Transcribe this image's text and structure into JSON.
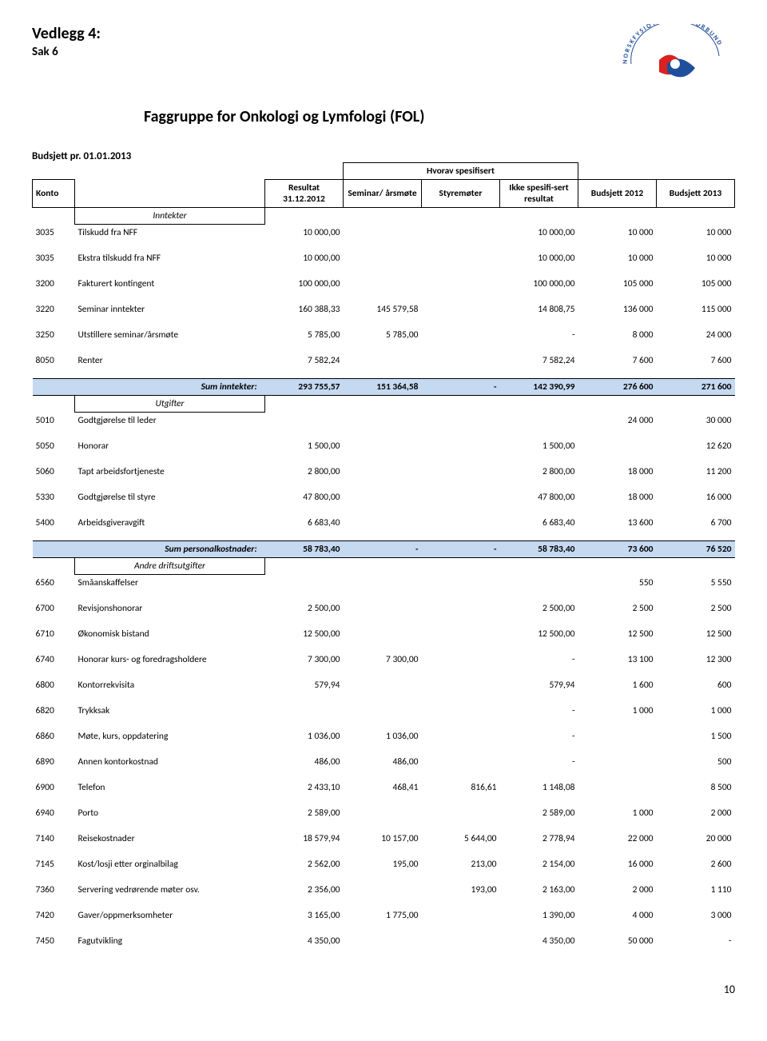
{
  "header": {
    "vedlegg": "Vedlegg 4:",
    "sak": "Sak 6",
    "title": "Faggruppe for Onkologi og Lymfologi (FOL)",
    "logo_text_top": "NORSK",
    "logo_text_mid": "FYSIOTERAPEUTFORBUND",
    "logo_colors": {
      "red": "#d9221f",
      "blue": "#1f4f9b"
    }
  },
  "budsjett_line": "Budsjett pr. 01.01.2013",
  "hvorav": "Hvorav spesifisert",
  "columns": {
    "konto": "Konto",
    "resultat": "Resultat 31.12.2012",
    "seminar": "Seminar/ årsmøte",
    "styremoter": "Styremøter",
    "ikke": "Ikke spesifi-sert resultat",
    "b2012": "Budsjett 2012",
    "b2013": "Budsjett 2013"
  },
  "sections": {
    "inntekter": "Inntekter",
    "utgifter": "Utgifter",
    "andre": "Andre driftsutgifter"
  },
  "sums": {
    "inntekter_label": "Sum inntekter:",
    "inntekter": [
      "293 755,57",
      "151 364,58",
      "-",
      "142 390,99",
      "276 600",
      "271 600"
    ],
    "personal_label": "Sum personalkostnader:",
    "personal": [
      "58 783,40",
      "-",
      "-",
      "58 783,40",
      "73 600",
      "76 520"
    ]
  },
  "rows_inntekter": [
    {
      "k": "3035",
      "l": "Tilskudd fra NFF",
      "v": [
        "10 000,00",
        "",
        "",
        "10 000,00",
        "10 000",
        "10 000"
      ]
    },
    {
      "k": "3035",
      "l": "Ekstra tilskudd fra NFF",
      "v": [
        "10 000,00",
        "",
        "",
        "10 000,00",
        "10 000",
        "10 000"
      ]
    },
    {
      "k": "3200",
      "l": "Fakturert kontingent",
      "v": [
        "100 000,00",
        "",
        "",
        "100 000,00",
        "105 000",
        "105 000"
      ]
    },
    {
      "k": "3220",
      "l": "Seminar inntekter",
      "v": [
        "160 388,33",
        "145 579,58",
        "",
        "14 808,75",
        "136 000",
        "115 000"
      ]
    },
    {
      "k": "3250",
      "l": "Utstillere seminar/årsmøte",
      "v": [
        "5 785,00",
        "5 785,00",
        "",
        "-",
        "8 000",
        "24 000"
      ]
    },
    {
      "k": "8050",
      "l": "Renter",
      "v": [
        "7 582,24",
        "",
        "",
        "7 582,24",
        "7 600",
        "7 600"
      ]
    }
  ],
  "rows_utgifter": [
    {
      "k": "5010",
      "l": "Godtgjørelse til leder",
      "v": [
        "",
        "",
        "",
        "",
        "24 000",
        "30 000"
      ]
    },
    {
      "k": "5050",
      "l": "Honorar",
      "v": [
        "1 500,00",
        "",
        "",
        "1 500,00",
        "",
        "12 620"
      ]
    },
    {
      "k": "5060",
      "l": "Tapt arbeidsfortjeneste",
      "v": [
        "2 800,00",
        "",
        "",
        "2 800,00",
        "18 000",
        "11 200"
      ]
    },
    {
      "k": "5330",
      "l": "Godtgjørelse til styre",
      "v": [
        "47 800,00",
        "",
        "",
        "47 800,00",
        "18 000",
        "16 000"
      ]
    },
    {
      "k": "5400",
      "l": "Arbeidsgiveravgift",
      "v": [
        "6 683,40",
        "",
        "",
        "6 683,40",
        "13 600",
        "6 700"
      ]
    }
  ],
  "rows_andre": [
    {
      "k": "6560",
      "l": "Småanskaffelser",
      "v": [
        "",
        "",
        "",
        "",
        "550",
        "5 550"
      ]
    },
    {
      "k": "6700",
      "l": "Revisjonshonorar",
      "v": [
        "2 500,00",
        "",
        "",
        "2 500,00",
        "2 500",
        "2 500"
      ]
    },
    {
      "k": "6710",
      "l": "Økonomisk bistand",
      "v": [
        "12 500,00",
        "",
        "",
        "12 500,00",
        "12 500",
        "12 500"
      ]
    },
    {
      "k": "6740",
      "l": "Honorar kurs- og foredragsholdere",
      "v": [
        "7 300,00",
        "7 300,00",
        "",
        "-",
        "13 100",
        "12 300"
      ]
    },
    {
      "k": "6800",
      "l": "Kontorrekvisita",
      "v": [
        "579,94",
        "",
        "",
        "579,94",
        "1 600",
        "600"
      ]
    },
    {
      "k": "6820",
      "l": "Trykksak",
      "v": [
        "",
        "",
        "",
        "-",
        "1 000",
        "1 000"
      ]
    },
    {
      "k": "6860",
      "l": "Møte, kurs, oppdatering",
      "v": [
        "1 036,00",
        "1 036,00",
        "",
        "-",
        "",
        "1 500"
      ]
    },
    {
      "k": "6890",
      "l": "Annen kontorkostnad",
      "v": [
        "486,00",
        "486,00",
        "",
        "-",
        "",
        "500"
      ]
    },
    {
      "k": "6900",
      "l": "Telefon",
      "v": [
        "2 433,10",
        "468,41",
        "816,61",
        "1 148,08",
        "",
        "8 500"
      ]
    },
    {
      "k": "6940",
      "l": "Porto",
      "v": [
        "2 589,00",
        "",
        "",
        "2 589,00",
        "1 000",
        "2 000"
      ]
    },
    {
      "k": "7140",
      "l": "Reisekostnader",
      "v": [
        "18 579,94",
        "10 157,00",
        "5 644,00",
        "2 778,94",
        "22 000",
        "20 000"
      ]
    },
    {
      "k": "7145",
      "l": "Kost/losji etter orginalbilag",
      "v": [
        "2 562,00",
        "195,00",
        "213,00",
        "2 154,00",
        "16 000",
        "2 600"
      ]
    },
    {
      "k": "7360",
      "l": "Servering vedrørende møter osv.",
      "v": [
        "2 356,00",
        "",
        "193,00",
        "2 163,00",
        "2 000",
        "1 110"
      ]
    },
    {
      "k": "7420",
      "l": "Gaver/oppmerksomheter",
      "v": [
        "3 165,00",
        "1 775,00",
        "",
        "1 390,00",
        "4 000",
        "3 000"
      ]
    },
    {
      "k": "7450",
      "l": "Fagutvikling",
      "v": [
        "4 350,00",
        "",
        "",
        "4 350,00",
        "50 000",
        "-"
      ]
    }
  ],
  "page_num": "10",
  "colors": {
    "sum_bg": "#c5d9f1"
  }
}
